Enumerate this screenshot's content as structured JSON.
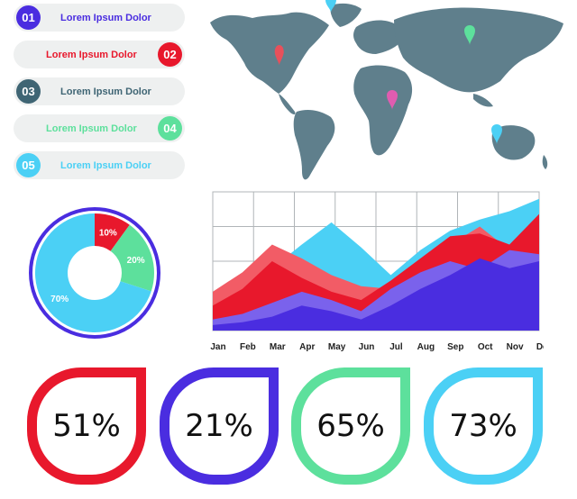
{
  "list": [
    {
      "num": "01",
      "label": "Lorem Ipsum Dolor",
      "color": "#4a2de0",
      "side": "left"
    },
    {
      "num": "02",
      "label": "Lorem Ipsum Dolor",
      "color": "#e8182c",
      "side": "right"
    },
    {
      "num": "03",
      "label": "Lorem Ipsum Dolor",
      "color": "#3f6574",
      "side": "left"
    },
    {
      "num": "04",
      "label": "Lorem Ipsum Dolor",
      "color": "#5de09c",
      "side": "right"
    },
    {
      "num": "05",
      "label": "Lorem Ipsum Dolor",
      "color": "#4bd0f5",
      "side": "left"
    }
  ],
  "map": {
    "land_color": "#5f7f8c",
    "pin_colors": [
      "#e8505b",
      "#5de09c",
      "#e05cb0",
      "#4bd0f5"
    ]
  },
  "chart_data": [
    {
      "type": "pie",
      "categories": [
        "10%",
        "20%",
        "70%"
      ],
      "values": [
        10,
        20,
        70
      ],
      "colors": [
        "#e8182c",
        "#5de09c",
        "#4bd0f5"
      ],
      "ring_color": "#4a2de0",
      "style": "donut"
    },
    {
      "type": "area",
      "categories": [
        "Jan",
        "Feb",
        "Mar",
        "Apr",
        "May",
        "Jun",
        "Jul",
        "Aug",
        "Sep",
        "Oct",
        "Nov",
        "Dec"
      ],
      "ylim": [
        0,
        100
      ],
      "grid": true,
      "series": [
        {
          "color": "#4bd0f5",
          "values": [
            20,
            30,
            45,
            62,
            78,
            60,
            40,
            58,
            72,
            80,
            86,
            95
          ]
        },
        {
          "color": "#f25c66",
          "values": [
            28,
            42,
            62,
            52,
            40,
            32,
            30,
            45,
            62,
            75,
            58,
            72
          ]
        },
        {
          "color": "#e8182c",
          "values": [
            18,
            30,
            50,
            38,
            28,
            22,
            36,
            52,
            68,
            70,
            62,
            84
          ]
        },
        {
          "color": "#7a62ec",
          "values": [
            8,
            12,
            20,
            28,
            22,
            14,
            30,
            42,
            50,
            44,
            58,
            55
          ]
        },
        {
          "color": "#4a2de0",
          "values": [
            4,
            6,
            10,
            18,
            14,
            8,
            18,
            30,
            40,
            52,
            45,
            50
          ]
        }
      ]
    },
    {
      "type": "table",
      "values": [
        "51%",
        "21%",
        "65%",
        "73%"
      ],
      "colors": [
        "#e8182c",
        "#4a2de0",
        "#5de09c",
        "#4bd0f5"
      ]
    }
  ]
}
